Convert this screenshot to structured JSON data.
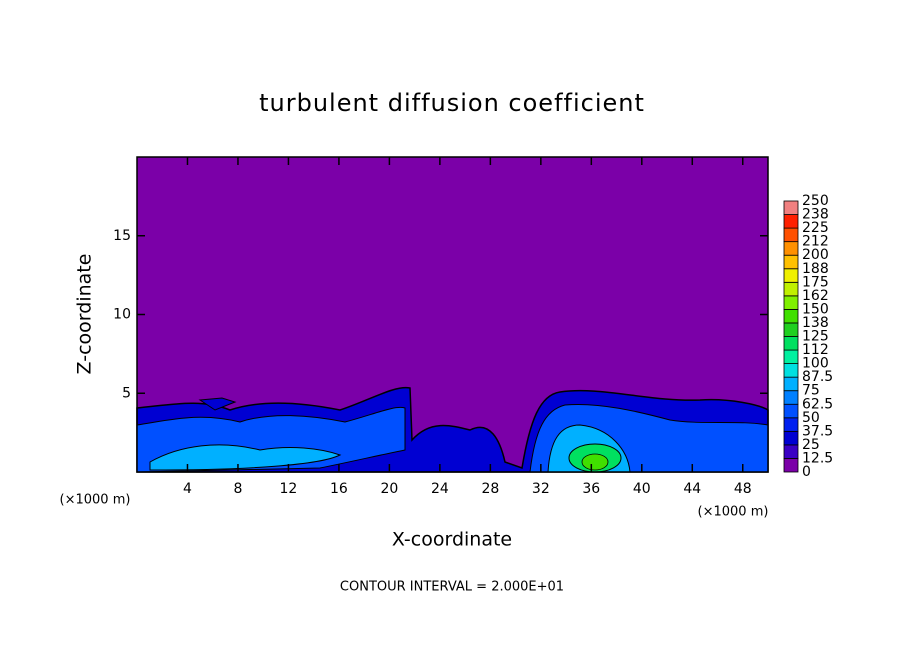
{
  "chart_data": {
    "type": "contour",
    "title": "turbulent diffusion coefficient",
    "x_label": "X-coordinate",
    "y_label": "Z-coordinate",
    "x_unit": "(×1000 m)",
    "footer": "CONTOUR INTERVAL = 2.000E+01",
    "xlim": [
      0,
      50
    ],
    "xticks": [
      4,
      8,
      12,
      16,
      20,
      24,
      28,
      32,
      36,
      40,
      44,
      48
    ],
    "ylim": [
      0,
      20
    ],
    "yticks": [
      5,
      10,
      15
    ],
    "colorbar": {
      "levels": [
        0,
        12.5,
        25,
        37.5,
        50,
        62.5,
        75,
        87.5,
        100,
        112,
        125,
        138,
        150,
        162,
        175,
        188,
        200,
        212,
        225,
        238,
        250
      ],
      "colors": [
        "#7b00a8",
        "#3a00c4",
        "#0000d2",
        "#0020f0",
        "#0050ff",
        "#0080ff",
        "#00b0ff",
        "#00e0e0",
        "#00f0a0",
        "#00e060",
        "#20d020",
        "#40e000",
        "#80f000",
        "#c0f000",
        "#f0f000",
        "#ffc000",
        "#ff9000",
        "#ff5000",
        "#ff2000",
        "#f08080"
      ]
    }
  }
}
